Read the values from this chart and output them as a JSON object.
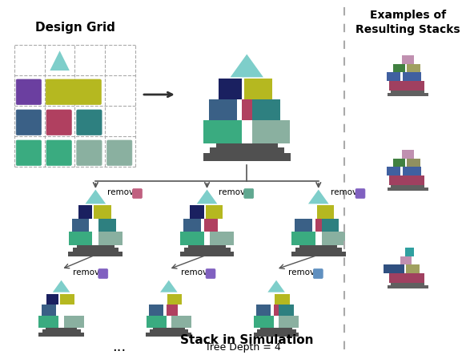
{
  "bg_color": "#ffffff",
  "title_design_grid": "Design Grid",
  "title_stack_sim": "Stack in Simulation",
  "title_examples": "Examples of\nResulting Stacks",
  "label_tree_depth": "Tree Depth = 4",
  "label_dots": "...",
  "colors": {
    "triangle": "#7ececa",
    "purple": "#6b3fa0",
    "olive": "#b5b820",
    "steel_blue": "#3a6086",
    "crimson": "#b04060",
    "teal": "#2e8080",
    "teal2": "#3aab80",
    "sage": "#8ab0a0",
    "dark_navy": "#1a2060",
    "base_gray": "#505050",
    "arrow_color": "#303030",
    "remove_pink": "#c06080",
    "remove_teal": "#60a890",
    "remove_purple": "#8060c0",
    "remove_blue": "#6090c0",
    "ex1_pink": "#c090b0",
    "ex1_green": "#408040",
    "ex1_blue": "#4060a0",
    "ex1_olive": "#a0a060",
    "ex1_maroon": "#a04060",
    "ex2_green": "#408040",
    "ex2_blue": "#4060a0",
    "ex2_olive": "#909060",
    "ex2_maroon": "#a04060",
    "ex3_teal": "#30a0a0",
    "ex3_olive": "#a0a060",
    "ex3_pink": "#c090b0",
    "ex3_maroon": "#a04060",
    "ex3_blue": "#305080"
  }
}
